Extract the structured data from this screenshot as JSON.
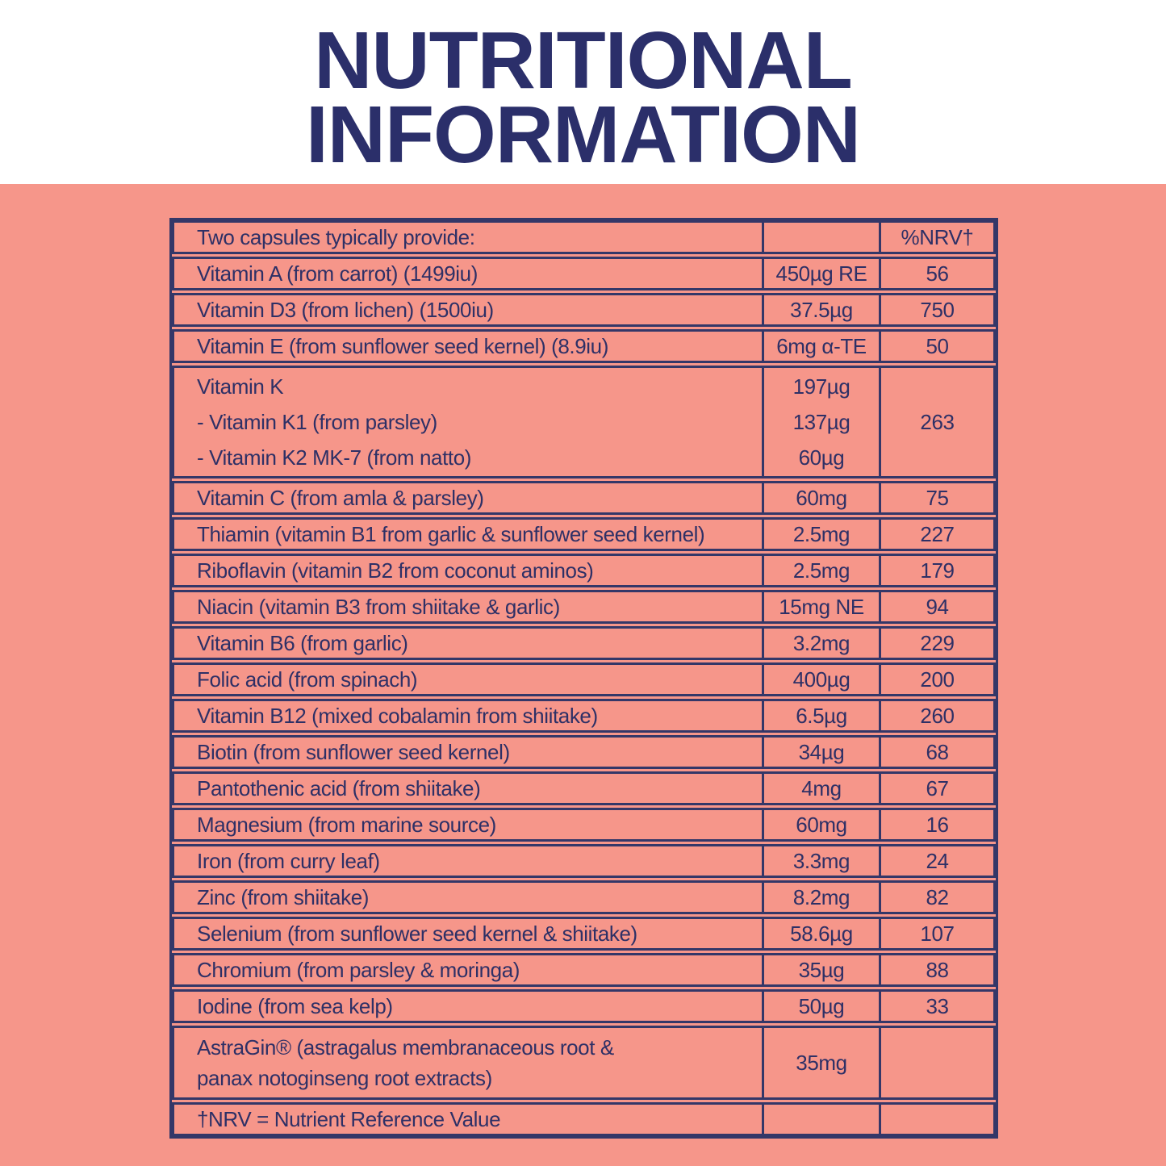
{
  "title": {
    "line1": "NUTRITIONAL",
    "line2": "INFORMATION"
  },
  "colors": {
    "panel": "#F6968A",
    "ink": "#2E3066",
    "border": "#343768",
    "title": "#2B2F6A",
    "background": "#FFFFFF"
  },
  "table": {
    "header": {
      "label": "Two capsules typically provide:",
      "amount": "",
      "nrv_label": "%NRV†"
    },
    "rows": [
      {
        "name": "Vitamin A (from carrot) (1499iu)",
        "amount": "450µg RE",
        "nrv": "56"
      },
      {
        "name": "Vitamin D3 (from lichen) (1500iu)",
        "amount": "37.5µg",
        "nrv": "750"
      },
      {
        "name": "Vitamin E (from sunflower seed kernel) (8.9iu)",
        "amount": "6mg α-TE",
        "nrv": "50"
      },
      {
        "name": "Vitamin K\n- Vitamin K1 (from parsley)\n- Vitamin K2 MK-7 (from natto)",
        "amounts": [
          "197µg",
          "137µg",
          "60µg"
        ],
        "nrv": "263"
      },
      {
        "name": "Vitamin C (from amla & parsley)",
        "amount": "60mg",
        "nrv": "75"
      },
      {
        "name": "Thiamin (vitamin B1 from garlic & sunflower seed kernel)",
        "amount": "2.5mg",
        "nrv": "227"
      },
      {
        "name": "Riboflavin (vitamin B2 from coconut aminos)",
        "amount": "2.5mg",
        "nrv": "179"
      },
      {
        "name": "Niacin (vitamin B3 from shiitake & garlic)",
        "amount": "15mg NE",
        "nrv": "94"
      },
      {
        "name": "Vitamin B6 (from garlic)",
        "amount": "3.2mg",
        "nrv": "229"
      },
      {
        "name": "Folic acid (from spinach)",
        "amount": "400µg",
        "nrv": "200"
      },
      {
        "name": "Vitamin B12 (mixed cobalamin from shiitake)",
        "amount": "6.5µg",
        "nrv": "260"
      },
      {
        "name": "Biotin (from sunflower seed kernel)",
        "amount": "34µg",
        "nrv": "68"
      },
      {
        "name": "Pantothenic acid (from shiitake)",
        "amount": "4mg",
        "nrv": "67"
      },
      {
        "name": "Magnesium (from marine source)",
        "amount": "60mg",
        "nrv": "16"
      },
      {
        "name": "Iron (from curry leaf)",
        "amount": "3.3mg",
        "nrv": "24"
      },
      {
        "name": "Zinc (from shiitake)",
        "amount": "8.2mg",
        "nrv": "82"
      },
      {
        "name": "Selenium (from sunflower seed kernel & shiitake)",
        "amount": "58.6µg",
        "nrv": "107"
      },
      {
        "name": "Chromium (from parsley & moringa)",
        "amount": "35µg",
        "nrv": "88"
      },
      {
        "name": "Iodine (from sea kelp)",
        "amount": "50µg",
        "nrv": "33"
      },
      {
        "name": "AstraGin® (astragalus membranaceous root &\npanax notoginseng root extracts)",
        "amount": "35mg",
        "nrv": ""
      }
    ],
    "footnote": "†NRV = Nutrient Reference Value"
  }
}
